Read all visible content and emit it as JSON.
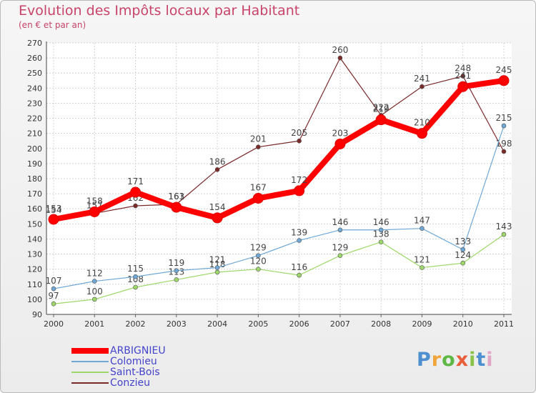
{
  "header": {
    "title": "Evolution des Impôts locaux par Habitant",
    "subtitle": "(en € et par an)"
  },
  "logo": {
    "text": "Proxiti",
    "colors": [
      "#4e8fd0",
      "#f0a53b",
      "#5fb745",
      "#e95e3b",
      "#8bc34a",
      "#4e8fd0",
      "#e2a6c9"
    ]
  },
  "chart_data": {
    "type": "line",
    "title": "Evolution des Impôts locaux par Habitant",
    "subtitle": "(en € et par an)",
    "xlabel": "",
    "ylabel": "",
    "categories": [
      "2000",
      "2001",
      "2002",
      "2003",
      "2004",
      "2005",
      "2006",
      "2007",
      "2008",
      "2009",
      "2010",
      "2011"
    ],
    "ylim": [
      90,
      270
    ],
    "yticks": [
      90,
      100,
      110,
      120,
      130,
      140,
      150,
      160,
      170,
      180,
      190,
      200,
      210,
      220,
      230,
      240,
      250,
      260,
      270
    ],
    "grid": true,
    "legend_position": "bottom-left",
    "series": [
      {
        "name": "ARBIGNIEU",
        "color": "#ff0000",
        "values": [
          153,
          158,
          171,
          161,
          154,
          167,
          172,
          203,
          219,
          210,
          241,
          245
        ],
        "labels": [
          "153",
          "158",
          "171",
          "161",
          "154",
          "167",
          "172",
          "203",
          "219",
          "210",
          "241",
          "245"
        ]
      },
      {
        "name": "Colomieu",
        "color": "#6fa8d6",
        "values": [
          107,
          112,
          115,
          119,
          121,
          129,
          139,
          146,
          146,
          147,
          133,
          215
        ],
        "labels": [
          "107",
          "112",
          "115",
          "119",
          "121",
          "129",
          "139",
          "146",
          "146",
          "147",
          "133",
          "215"
        ]
      },
      {
        "name": "Saint-Bois",
        "color": "#9ed86a",
        "values": [
          97,
          100,
          108,
          113,
          118,
          120,
          116,
          129,
          138,
          121,
          124,
          143
        ],
        "labels": [
          "97",
          "100",
          "108",
          "113",
          "118",
          "120",
          "116",
          "129",
          "138",
          "121",
          "124",
          "143"
        ]
      },
      {
        "name": "Conzieu",
        "color": "#7b2a2a",
        "values": [
          154,
          157,
          162,
          163,
          186,
          201,
          205,
          260,
          222,
          241,
          248,
          198
        ],
        "labels": [
          "154",
          "157",
          "162",
          "163",
          "186",
          "201",
          "205",
          "260",
          "222",
          "241",
          "248",
          "198"
        ]
      }
    ]
  }
}
